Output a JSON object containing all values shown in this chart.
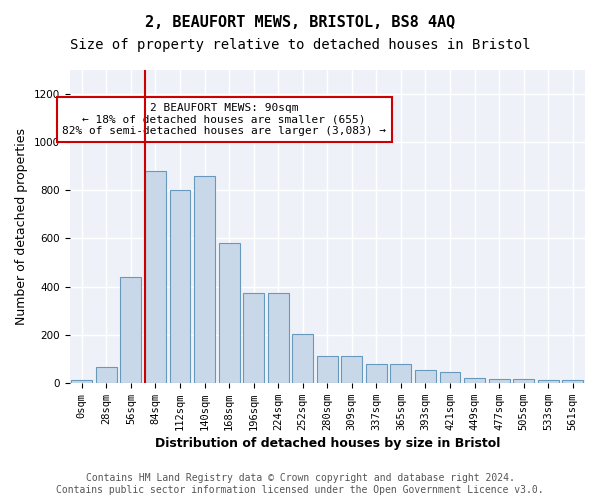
{
  "title": "2, BEAUFORT MEWS, BRISTOL, BS8 4AQ",
  "subtitle": "Size of property relative to detached houses in Bristol",
  "xlabel": "Distribution of detached houses by size in Bristol",
  "ylabel": "Number of detached properties",
  "bar_color": "#c8d8e8",
  "bar_edge_color": "#6699bb",
  "background_color": "#eef2f8",
  "grid_color": "#ffffff",
  "annotation_box_color": "#cc0000",
  "property_line_color": "#cc0000",
  "property_bin_index": 3,
  "annotation_text": "2 BEAUFORT MEWS: 90sqm\n← 18% of detached houses are smaller (655)\n82% of semi-detached houses are larger (3,083) →",
  "categories": [
    "0sqm",
    "28sqm",
    "56sqm",
    "84sqm",
    "112sqm",
    "140sqm",
    "168sqm",
    "196sqm",
    "224sqm",
    "252sqm",
    "280sqm",
    "309sqm",
    "337sqm",
    "365sqm",
    "393sqm",
    "421sqm",
    "449sqm",
    "477sqm",
    "505sqm",
    "533sqm",
    "561sqm"
  ],
  "values": [
    10,
    65,
    440,
    880,
    800,
    860,
    580,
    375,
    375,
    205,
    110,
    110,
    80,
    80,
    55,
    45,
    22,
    17,
    17,
    10,
    10
  ],
  "ylim": [
    0,
    1300
  ],
  "yticks": [
    0,
    200,
    400,
    600,
    800,
    1000,
    1200
  ],
  "footer": "Contains HM Land Registry data © Crown copyright and database right 2024.\nContains public sector information licensed under the Open Government Licence v3.0.",
  "title_fontsize": 11,
  "subtitle_fontsize": 10,
  "axis_fontsize": 9,
  "tick_fontsize": 7.5,
  "footer_fontsize": 7
}
